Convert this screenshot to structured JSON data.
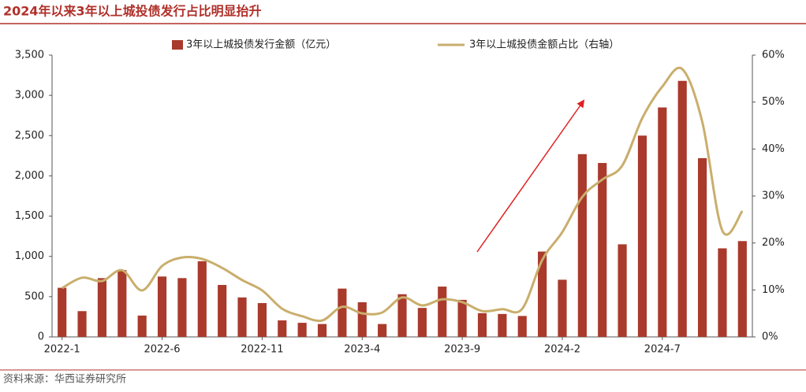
{
  "title": "2024年以来3年以上城投债发行占比明显抬升",
  "source": "资料来源：华西证券研究所",
  "chart_data": {
    "type": "bar",
    "categories": [
      "2022-1",
      null,
      null,
      null,
      null,
      "2022-6",
      null,
      null,
      null,
      null,
      "2022-11",
      null,
      null,
      null,
      null,
      "2023-4",
      null,
      null,
      null,
      null,
      "2023-9",
      null,
      null,
      null,
      null,
      "2024-2",
      null,
      null,
      null,
      null,
      "2024-7",
      null,
      null,
      null,
      null
    ],
    "series": [
      {
        "name": "3年以上城投债发行金额（亿元）",
        "type": "bar",
        "color": "#a93a2c",
        "values": [
          610,
          320,
          730,
          830,
          265,
          750,
          730,
          940,
          645,
          490,
          420,
          205,
          175,
          160,
          600,
          430,
          160,
          530,
          360,
          625,
          460,
          295,
          285,
          260,
          1060,
          710,
          2270,
          2160,
          1150,
          2500,
          2850,
          3180,
          2220,
          1100,
          1190
        ]
      },
      {
        "name": "3年以上城投债金额占比（右轴）",
        "type": "line",
        "axis": "y2",
        "color": "#c9ae6c",
        "values": [
          10.4,
          12.6,
          11.9,
          14.2,
          9.9,
          15.1,
          16.9,
          16.6,
          14.7,
          12.1,
          9.9,
          6.0,
          4.4,
          3.5,
          6.4,
          5.0,
          5.2,
          8.4,
          6.7,
          8.0,
          7.4,
          5.5,
          5.9,
          6.0,
          16.4,
          22.3,
          29.8,
          33.5,
          36.5,
          46.6,
          53.3,
          57.0,
          45.7,
          22.6,
          26.8
        ]
      }
    ],
    "ylim": [
      0,
      3500
    ],
    "yticks": [
      0,
      500,
      {
        "value": 1000,
        "label": "1,000"
      },
      {
        "value": 1500,
        "label": "1,500"
      },
      {
        "value": 2000,
        "label": "2,000"
      },
      {
        "value": 2500,
        "label": "2,500"
      },
      {
        "value": 3000,
        "label": "3,000"
      },
      {
        "value": 3500,
        "label": "3,500"
      }
    ],
    "y2lim": [
      0,
      60
    ],
    "y2ticks": [
      {
        "value": 0,
        "label": "0%"
      },
      {
        "value": 10,
        "label": "10%"
      },
      {
        "value": 20,
        "label": "20%"
      },
      {
        "value": 30,
        "label": "30%"
      },
      {
        "value": 40,
        "label": "40%"
      },
      {
        "value": 50,
        "label": "50%"
      },
      {
        "value": 60,
        "label": "60%"
      }
    ],
    "grid": false,
    "legend": "top"
  }
}
